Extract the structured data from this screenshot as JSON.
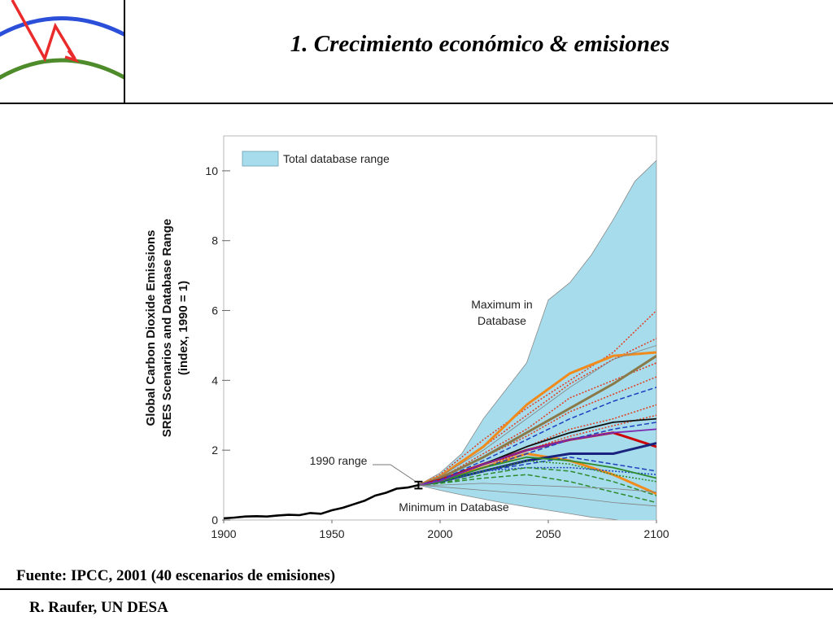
{
  "header": {
    "title": "1.  Crecimiento económico & emisiones"
  },
  "footer": {
    "source": "Fuente: IPCC, 2001 (40 escenarios de emisiones)",
    "author": "R. Raufer, UN DESA"
  },
  "colors": {
    "range_fill": "#a6dceb",
    "range_border": "#8a8a8a",
    "history_line": "#000000",
    "logo_blue": "#2b4fd8",
    "logo_green": "#4e8b2a",
    "logo_red": "#ea2b2b"
  },
  "chart_data": {
    "type": "area",
    "xlabel": "",
    "ylabel": [
      "Global  Carbon  Dioxide  Emissions",
      "SRES  Scenarios  and  Database  Range",
      "(index,  1990  =  1)"
    ],
    "xlim": [
      1900,
      2100
    ],
    "ylim": [
      0,
      11
    ],
    "x_ticks": [
      1900,
      1950,
      2000,
      2050,
      2100
    ],
    "y_ticks": [
      0,
      2,
      4,
      6,
      8,
      10
    ],
    "legend": {
      "label": "Total database range",
      "placement": "top-left"
    },
    "annotations": {
      "maximum": [
        "Maximum in",
        "Database"
      ],
      "minimum": "Minimum in  Database",
      "range_1990": "1990 range"
    },
    "database_range": {
      "x": [
        1990,
        2000,
        2010,
        2020,
        2030,
        2040,
        2050,
        2060,
        2070,
        2080,
        2090,
        2100
      ],
      "upper": [
        1.0,
        1.35,
        1.9,
        2.9,
        3.7,
        4.5,
        6.3,
        6.8,
        7.6,
        8.6,
        9.7,
        10.3
      ],
      "lower": [
        1.0,
        0.85,
        0.72,
        0.6,
        0.48,
        0.38,
        0.28,
        0.18,
        0.08,
        0.02,
        -0.1,
        -0.2
      ]
    },
    "error_bar_1990": {
      "x": 1990,
      "low": 0.9,
      "high": 1.1
    },
    "history": {
      "x": [
        1900,
        1905,
        1910,
        1915,
        1920,
        1925,
        1930,
        1935,
        1940,
        1945,
        1950,
        1955,
        1960,
        1965,
        1970,
        1975,
        1980,
        1985,
        1990
      ],
      "y": [
        0.05,
        0.07,
        0.1,
        0.11,
        0.1,
        0.13,
        0.15,
        0.14,
        0.2,
        0.18,
        0.28,
        0.35,
        0.45,
        0.55,
        0.7,
        0.78,
        0.9,
        0.93,
        1.0
      ]
    },
    "scenario_x": [
      1990,
      2000,
      2020,
      2040,
      2060,
      2080,
      2100
    ],
    "scenarios": [
      {
        "color": "#e23b1f",
        "dash": "dot",
        "values": [
          1.0,
          1.3,
          2.3,
          3.2,
          4.0,
          4.8,
          6.0
        ]
      },
      {
        "color": "#e23b1f",
        "dash": "dot",
        "values": [
          1.0,
          1.25,
          2.1,
          3.0,
          3.9,
          4.6,
          5.2
        ]
      },
      {
        "color": "#e23b1f",
        "dash": "dot",
        "values": [
          1.0,
          1.2,
          1.9,
          2.6,
          3.5,
          4.0,
          4.5
        ]
      },
      {
        "color": "#e23b1f",
        "dash": "dot",
        "values": [
          1.0,
          1.2,
          1.8,
          2.4,
          3.1,
          3.6,
          4.1
        ]
      },
      {
        "color": "#e23b1f",
        "dash": "dot",
        "values": [
          1.0,
          1.15,
          1.6,
          2.1,
          2.6,
          2.9,
          3.3
        ]
      },
      {
        "color": "#e23b1f",
        "dash": "dot",
        "values": [
          1.0,
          1.15,
          1.5,
          2.0,
          2.4,
          2.7,
          3.0
        ]
      },
      {
        "color": "#f08a1c",
        "dash": "solid-thick",
        "values": [
          1.0,
          1.25,
          2.1,
          3.3,
          4.2,
          4.7,
          4.8
        ]
      },
      {
        "color": "#f08a1c",
        "dash": "solid-thick",
        "values": [
          1.0,
          1.15,
          1.5,
          1.9,
          1.7,
          1.3,
          0.75
        ]
      },
      {
        "color": "#8a7a4a",
        "dash": "solid-thick",
        "values": [
          1.0,
          1.2,
          1.8,
          2.5,
          3.2,
          3.9,
          4.7
        ]
      },
      {
        "color": "#cc0000",
        "dash": "solid-thick",
        "values": [
          1.0,
          1.15,
          1.6,
          2.0,
          2.3,
          2.5,
          2.1
        ]
      },
      {
        "color": "#111111",
        "dash": "solid",
        "values": [
          1.0,
          1.12,
          1.6,
          2.1,
          2.5,
          2.8,
          2.9
        ]
      },
      {
        "color": "#1a237e",
        "dash": "solid-thick",
        "values": [
          1.0,
          1.1,
          1.4,
          1.7,
          1.9,
          1.9,
          2.2
        ]
      },
      {
        "color": "#1f3fbf",
        "dash": "dash",
        "values": [
          1.0,
          1.15,
          1.7,
          2.3,
          2.9,
          3.4,
          3.8
        ]
      },
      {
        "color": "#1f3fbf",
        "dash": "dash",
        "values": [
          1.0,
          1.1,
          1.5,
          1.9,
          2.3,
          2.6,
          2.8
        ]
      },
      {
        "color": "#1f3fbf",
        "dash": "dash",
        "values": [
          1.0,
          1.1,
          1.4,
          1.6,
          1.8,
          1.6,
          1.4
        ]
      },
      {
        "color": "#1f3fbf",
        "dash": "dot",
        "values": [
          1.0,
          1.1,
          1.4,
          1.5,
          1.5,
          1.4,
          1.3
        ]
      },
      {
        "color": "#2e8b2e",
        "dash": "dash",
        "values": [
          1.0,
          1.05,
          1.3,
          1.5,
          1.4,
          1.1,
          0.7
        ]
      },
      {
        "color": "#2e8b2e",
        "dash": "dash",
        "values": [
          1.0,
          1.05,
          1.2,
          1.3,
          1.1,
          0.8,
          0.5
        ]
      },
      {
        "color": "#2e8b2e",
        "dash": "dot",
        "values": [
          1.0,
          1.1,
          1.4,
          1.7,
          1.6,
          1.3,
          1.1
        ]
      },
      {
        "color": "#2e8b2e",
        "dash": "solid",
        "values": [
          1.0,
          1.1,
          1.5,
          1.8,
          1.7,
          1.5,
          1.2
        ]
      },
      {
        "color": "#7a2bb0",
        "dash": "solid",
        "values": [
          1.0,
          1.12,
          1.6,
          2.0,
          2.3,
          2.5,
          2.6
        ]
      },
      {
        "color": "#808080",
        "dash": "solid-thin",
        "values": [
          1.0,
          1.25,
          2.0,
          2.9,
          3.8,
          4.6,
          5.0
        ]
      },
      {
        "color": "#808080",
        "dash": "solid-thin",
        "values": [
          1.0,
          0.95,
          0.85,
          0.75,
          0.65,
          0.5,
          0.4
        ]
      },
      {
        "color": "#808080",
        "dash": "solid-thin",
        "values": [
          1.0,
          1.0,
          1.05,
          1.0,
          0.95,
          0.9,
          0.8
        ]
      }
    ]
  }
}
